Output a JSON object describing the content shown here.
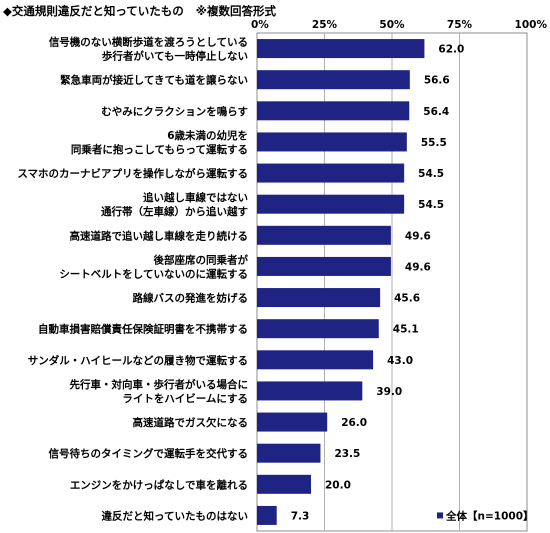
{
  "title": "◆交通規則違反だと知っていたもの",
  "note": "※複数回答形式",
  "chart_data": {
    "type": "bar",
    "orientation": "horizontal",
    "xlim": [
      0,
      100
    ],
    "ticks": [
      "0%",
      "25%",
      "50%",
      "75%",
      "100%"
    ],
    "tick_values": [
      0,
      25,
      50,
      75,
      100
    ],
    "grid": true,
    "legend_position": "bottom-right",
    "bar_color": "#1f2484",
    "series": [
      {
        "name": "全体【n=1000】"
      }
    ],
    "categories": [
      [
        "信号機のない横断歩道を渡ろうとしている",
        "歩行者がいても一時停止しない"
      ],
      [
        "緊急車両が接近してきても道を譲らない"
      ],
      [
        "むやみにクラクションを鳴らす"
      ],
      [
        "6歳未満の幼児を",
        "同乗者に抱っこしてもらって運転する"
      ],
      [
        "スマホのカーナビアプリを操作しながら運転する"
      ],
      [
        "追い越し車線ではない",
        "通行帯（左車線）から追い越す"
      ],
      [
        "高速道路で追い越し車線を走り続ける"
      ],
      [
        "後部座席の同乗者が",
        "シートベルトをしていないのに運転する"
      ],
      [
        "路線バスの発進を妨げる"
      ],
      [
        "自動車損害賠償責任保険証明書を不携帯する"
      ],
      [
        "サンダル・ハイヒールなどの履き物で運転する"
      ],
      [
        "先行車・対向車・歩行者がいる場合に",
        "ライトをハイビームにする"
      ],
      [
        "高速道路でガス欠になる"
      ],
      [
        "信号待ちのタイミングで運転手を交代する"
      ],
      [
        "エンジンをかけっぱなしで車を離れる"
      ],
      [
        "違反だと知っていたものはない"
      ]
    ],
    "values": [
      62.0,
      56.6,
      56.4,
      55.5,
      54.5,
      54.5,
      49.6,
      49.6,
      45.6,
      45.1,
      43.0,
      39.0,
      26.0,
      23.5,
      20.0,
      7.3
    ],
    "value_labels": [
      "62.0",
      "56.6",
      "56.4",
      "55.5",
      "54.5",
      "54.5",
      "49.6",
      "49.6",
      "45.6",
      "45.1",
      "43.0",
      "39.0",
      "26.0",
      "23.5",
      "20.0",
      "7.3"
    ]
  }
}
